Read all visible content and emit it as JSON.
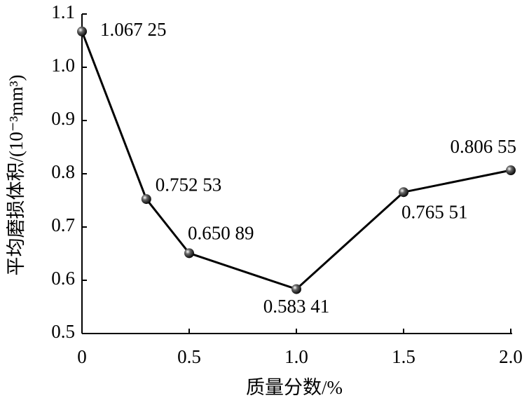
{
  "chart_data": {
    "type": "line",
    "x_label": "质量分数/%",
    "y_label": "平均磨损体积/(10⁻³mm³)",
    "x": [
      0,
      0.3,
      0.5,
      1.0,
      1.5,
      2.0
    ],
    "series": [
      {
        "color": "#000000",
        "values": [
          1.06725,
          0.75253,
          0.65089,
          0.58341,
          0.76551,
          0.80655
        ],
        "value_labels": [
          "1.067 25",
          "0.752 53",
          "0.650 89",
          "0.583 41",
          "0.765 51",
          "0.806 55"
        ]
      }
    ],
    "xlim": [
      0,
      2.0
    ],
    "xticks": [
      0,
      0.5,
      {
        "value": 1,
        "label": "1.0"
      },
      1.5,
      {
        "value": 2,
        "label": "2.0"
      }
    ],
    "ylim": [
      0.5,
      1.1
    ],
    "yticks": [
      0.5,
      0.6,
      0.7,
      0.8,
      0.9,
      {
        "value": 1,
        "label": "1.0"
      },
      1.1
    ],
    "grid": false
  }
}
